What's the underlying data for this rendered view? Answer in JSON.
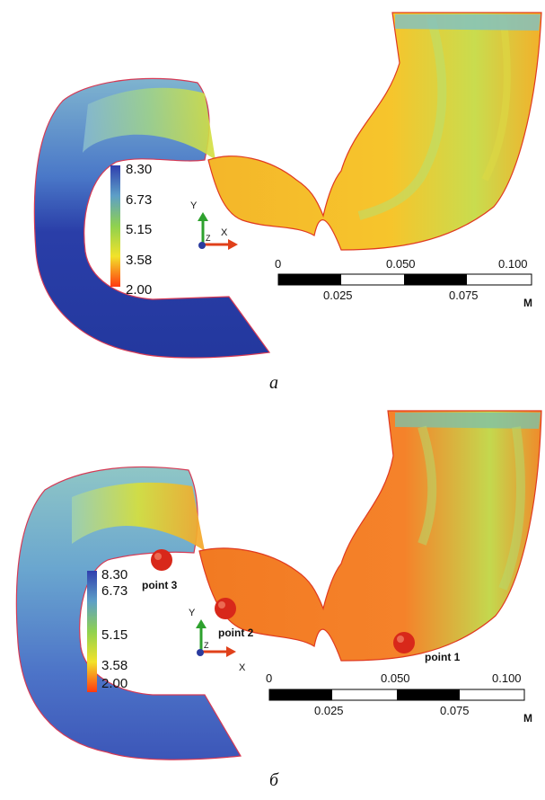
{
  "panels": [
    {
      "label": "a",
      "legend": {
        "ticks": [
          "8.30",
          "6.73",
          "5.15",
          "3.58",
          "2.00"
        ]
      },
      "axes": {
        "y": "Y",
        "x": "X",
        "z": "Z"
      },
      "scale": {
        "top_ticks": [
          "0",
          "0.050",
          "0.100"
        ],
        "bottom_ticks": [
          "0.025",
          "0.075"
        ],
        "unit": "M"
      },
      "points": []
    },
    {
      "label": "б",
      "legend": {
        "ticks": [
          "8.30",
          "6.73",
          "5.15",
          "3.58",
          "2.00"
        ]
      },
      "axes": {
        "y": "Y",
        "x": "X",
        "z": "Z"
      },
      "scale": {
        "top_ticks": [
          "0",
          "0.050",
          "0.100"
        ],
        "bottom_ticks": [
          "0.025",
          "0.075"
        ],
        "unit": "M"
      },
      "points": [
        "point 1",
        "point 2",
        "point 3"
      ]
    }
  ],
  "colors": {
    "legend_top": "#3a4fb3",
    "legend_mid_hi": "#5fa8a8",
    "legend_mid": "#8fd14f",
    "legend_low": "#f2e22a",
    "legend_bottom": "#ff3a10",
    "marker": "#d8281a"
  }
}
